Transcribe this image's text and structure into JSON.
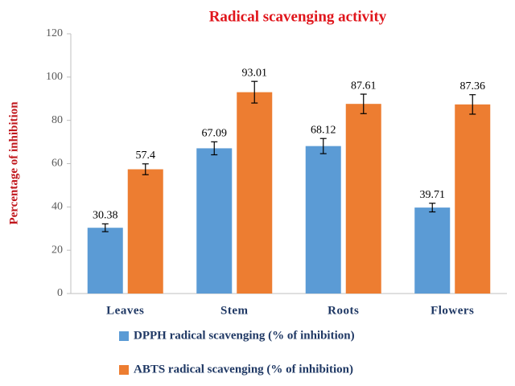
{
  "chart_data": {
    "type": "bar",
    "title": "Radical scavenging activity",
    "y_label": "Percentage of inhibition",
    "categories": [
      "Leaves",
      "Stem",
      "Roots",
      "Flowers"
    ],
    "series": [
      {
        "name": "DPPH radical scavenging (% of inhibition)",
        "color": "#5b9bd5",
        "values": [
          30.38,
          67.09,
          68.12,
          39.71
        ],
        "errors": [
          1.8,
          3,
          3.5,
          2
        ]
      },
      {
        "name": "ABTS radical scavenging (% of inhibition)",
        "color": "#ed7d31",
        "values": [
          57.4,
          93.01,
          87.61,
          87.36
        ],
        "errors": [
          2.5,
          5,
          4.5,
          4.5
        ]
      }
    ],
    "ylim": [
      0,
      120
    ],
    "yticks": [
      0,
      20,
      40,
      60,
      80,
      100,
      120
    ],
    "grid": false
  }
}
